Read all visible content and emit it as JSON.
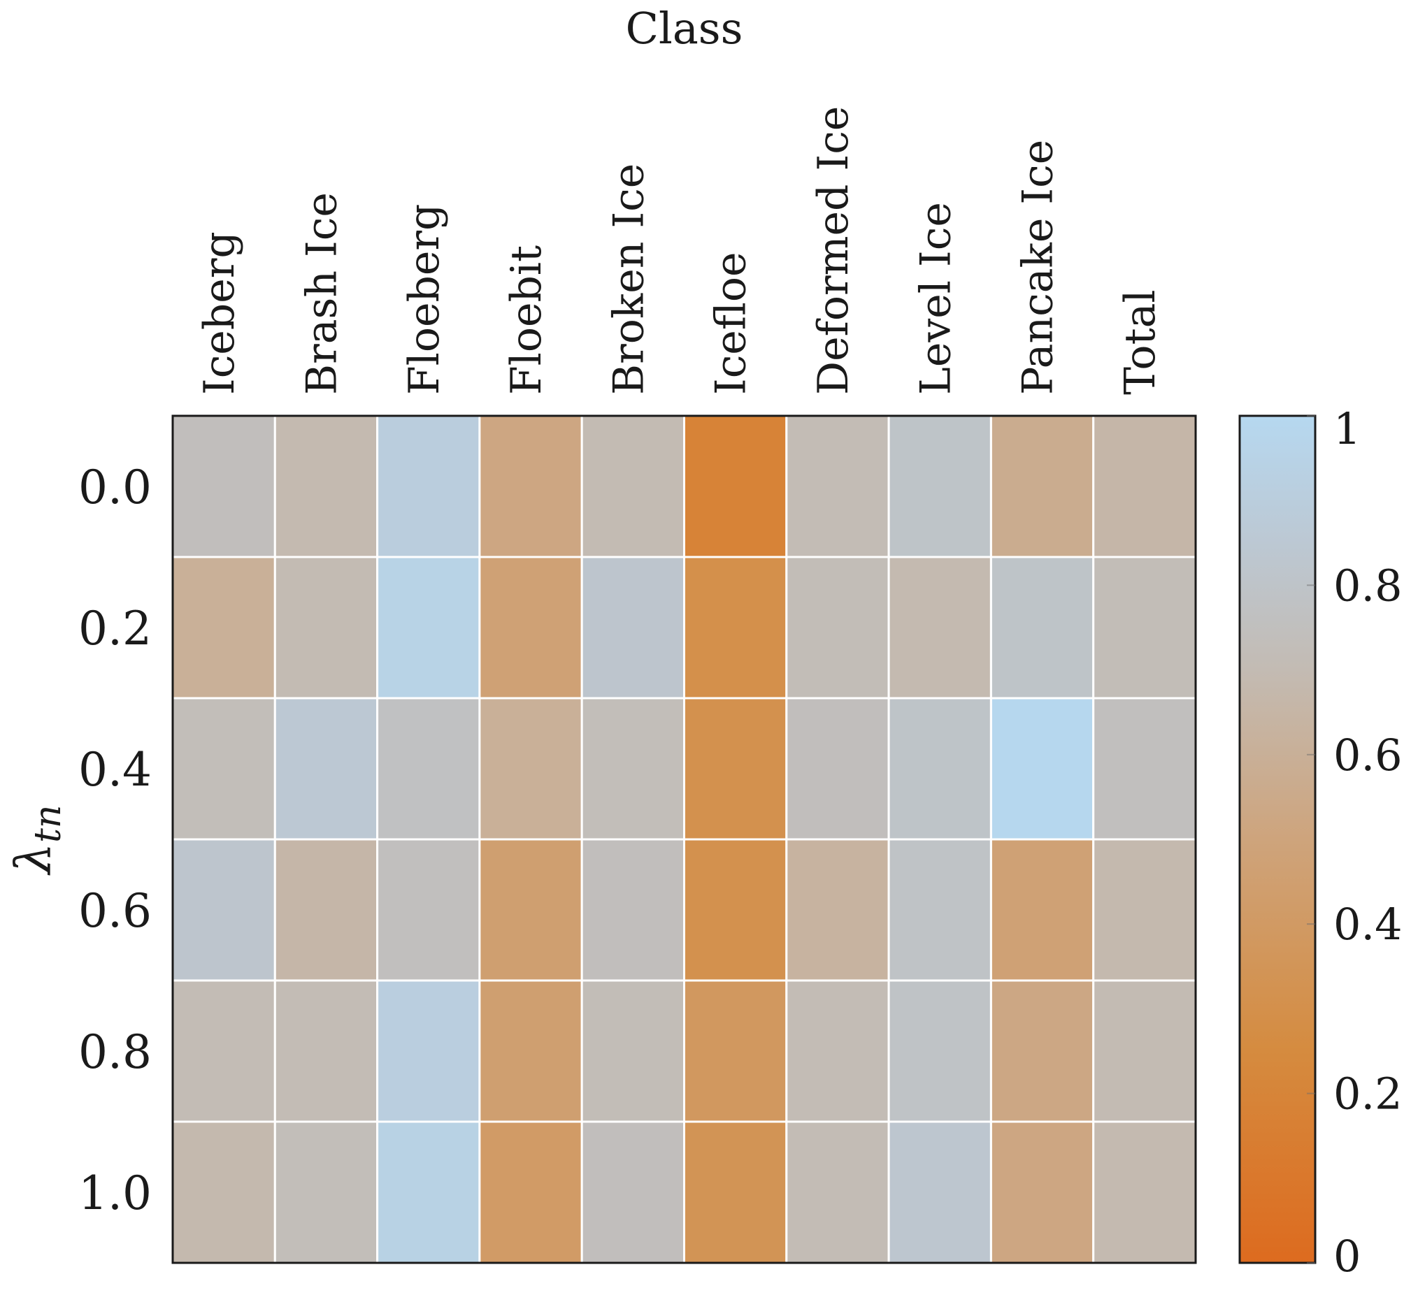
{
  "chart_data": {
    "type": "heatmap",
    "title": "Class",
    "xlabel": "Class",
    "ylabel": "λ_tn",
    "ylabel_main": "λ",
    "ylabel_sub": "tn",
    "columns": [
      "Iceberg",
      "Brash Ice",
      "Floeberg",
      "Floebit",
      "Broken Ice",
      "Icefloe",
      "Deformed Ice",
      "Level Ice",
      "Pancake Ice",
      "Total"
    ],
    "rows": [
      "0.0",
      "0.2",
      "0.4",
      "0.6",
      "0.8",
      "1.0"
    ],
    "values": [
      [
        0.74,
        0.69,
        0.9,
        0.52,
        0.7,
        0.19,
        0.71,
        0.8,
        0.57,
        0.66
      ],
      [
        0.6,
        0.7,
        0.95,
        0.47,
        0.82,
        0.3,
        0.72,
        0.69,
        0.8,
        0.72
      ],
      [
        0.73,
        0.85,
        0.77,
        0.6,
        0.73,
        0.31,
        0.74,
        0.8,
        0.99,
        0.75
      ],
      [
        0.82,
        0.66,
        0.75,
        0.45,
        0.74,
        0.31,
        0.63,
        0.79,
        0.47,
        0.68
      ],
      [
        0.71,
        0.71,
        0.91,
        0.45,
        0.72,
        0.38,
        0.71,
        0.79,
        0.53,
        0.7
      ],
      [
        0.68,
        0.73,
        0.94,
        0.41,
        0.74,
        0.34,
        0.71,
        0.83,
        0.52,
        0.69
      ]
    ],
    "colorbar": {
      "min": 0,
      "max": 1,
      "ticks": [
        "0",
        "0.2",
        "0.4",
        "0.6",
        "0.8",
        "1"
      ],
      "tick_values": [
        0,
        0.2,
        0.4,
        0.6,
        0.8,
        1
      ],
      "colormap": [
        {
          "stop": 0.0,
          "color": "#dd6b1f"
        },
        {
          "stop": 0.25,
          "color": "#d58b3f"
        },
        {
          "stop": 0.5,
          "color": "#cea47c"
        },
        {
          "stop": 0.7,
          "color": "#c3bbb3"
        },
        {
          "stop": 0.85,
          "color": "#bcc8d3"
        },
        {
          "stop": 1.0,
          "color": "#b6d8f0"
        }
      ]
    },
    "grid": true,
    "cell_border_color": "#ffffff",
    "frame_color": "#1a1a1a"
  }
}
